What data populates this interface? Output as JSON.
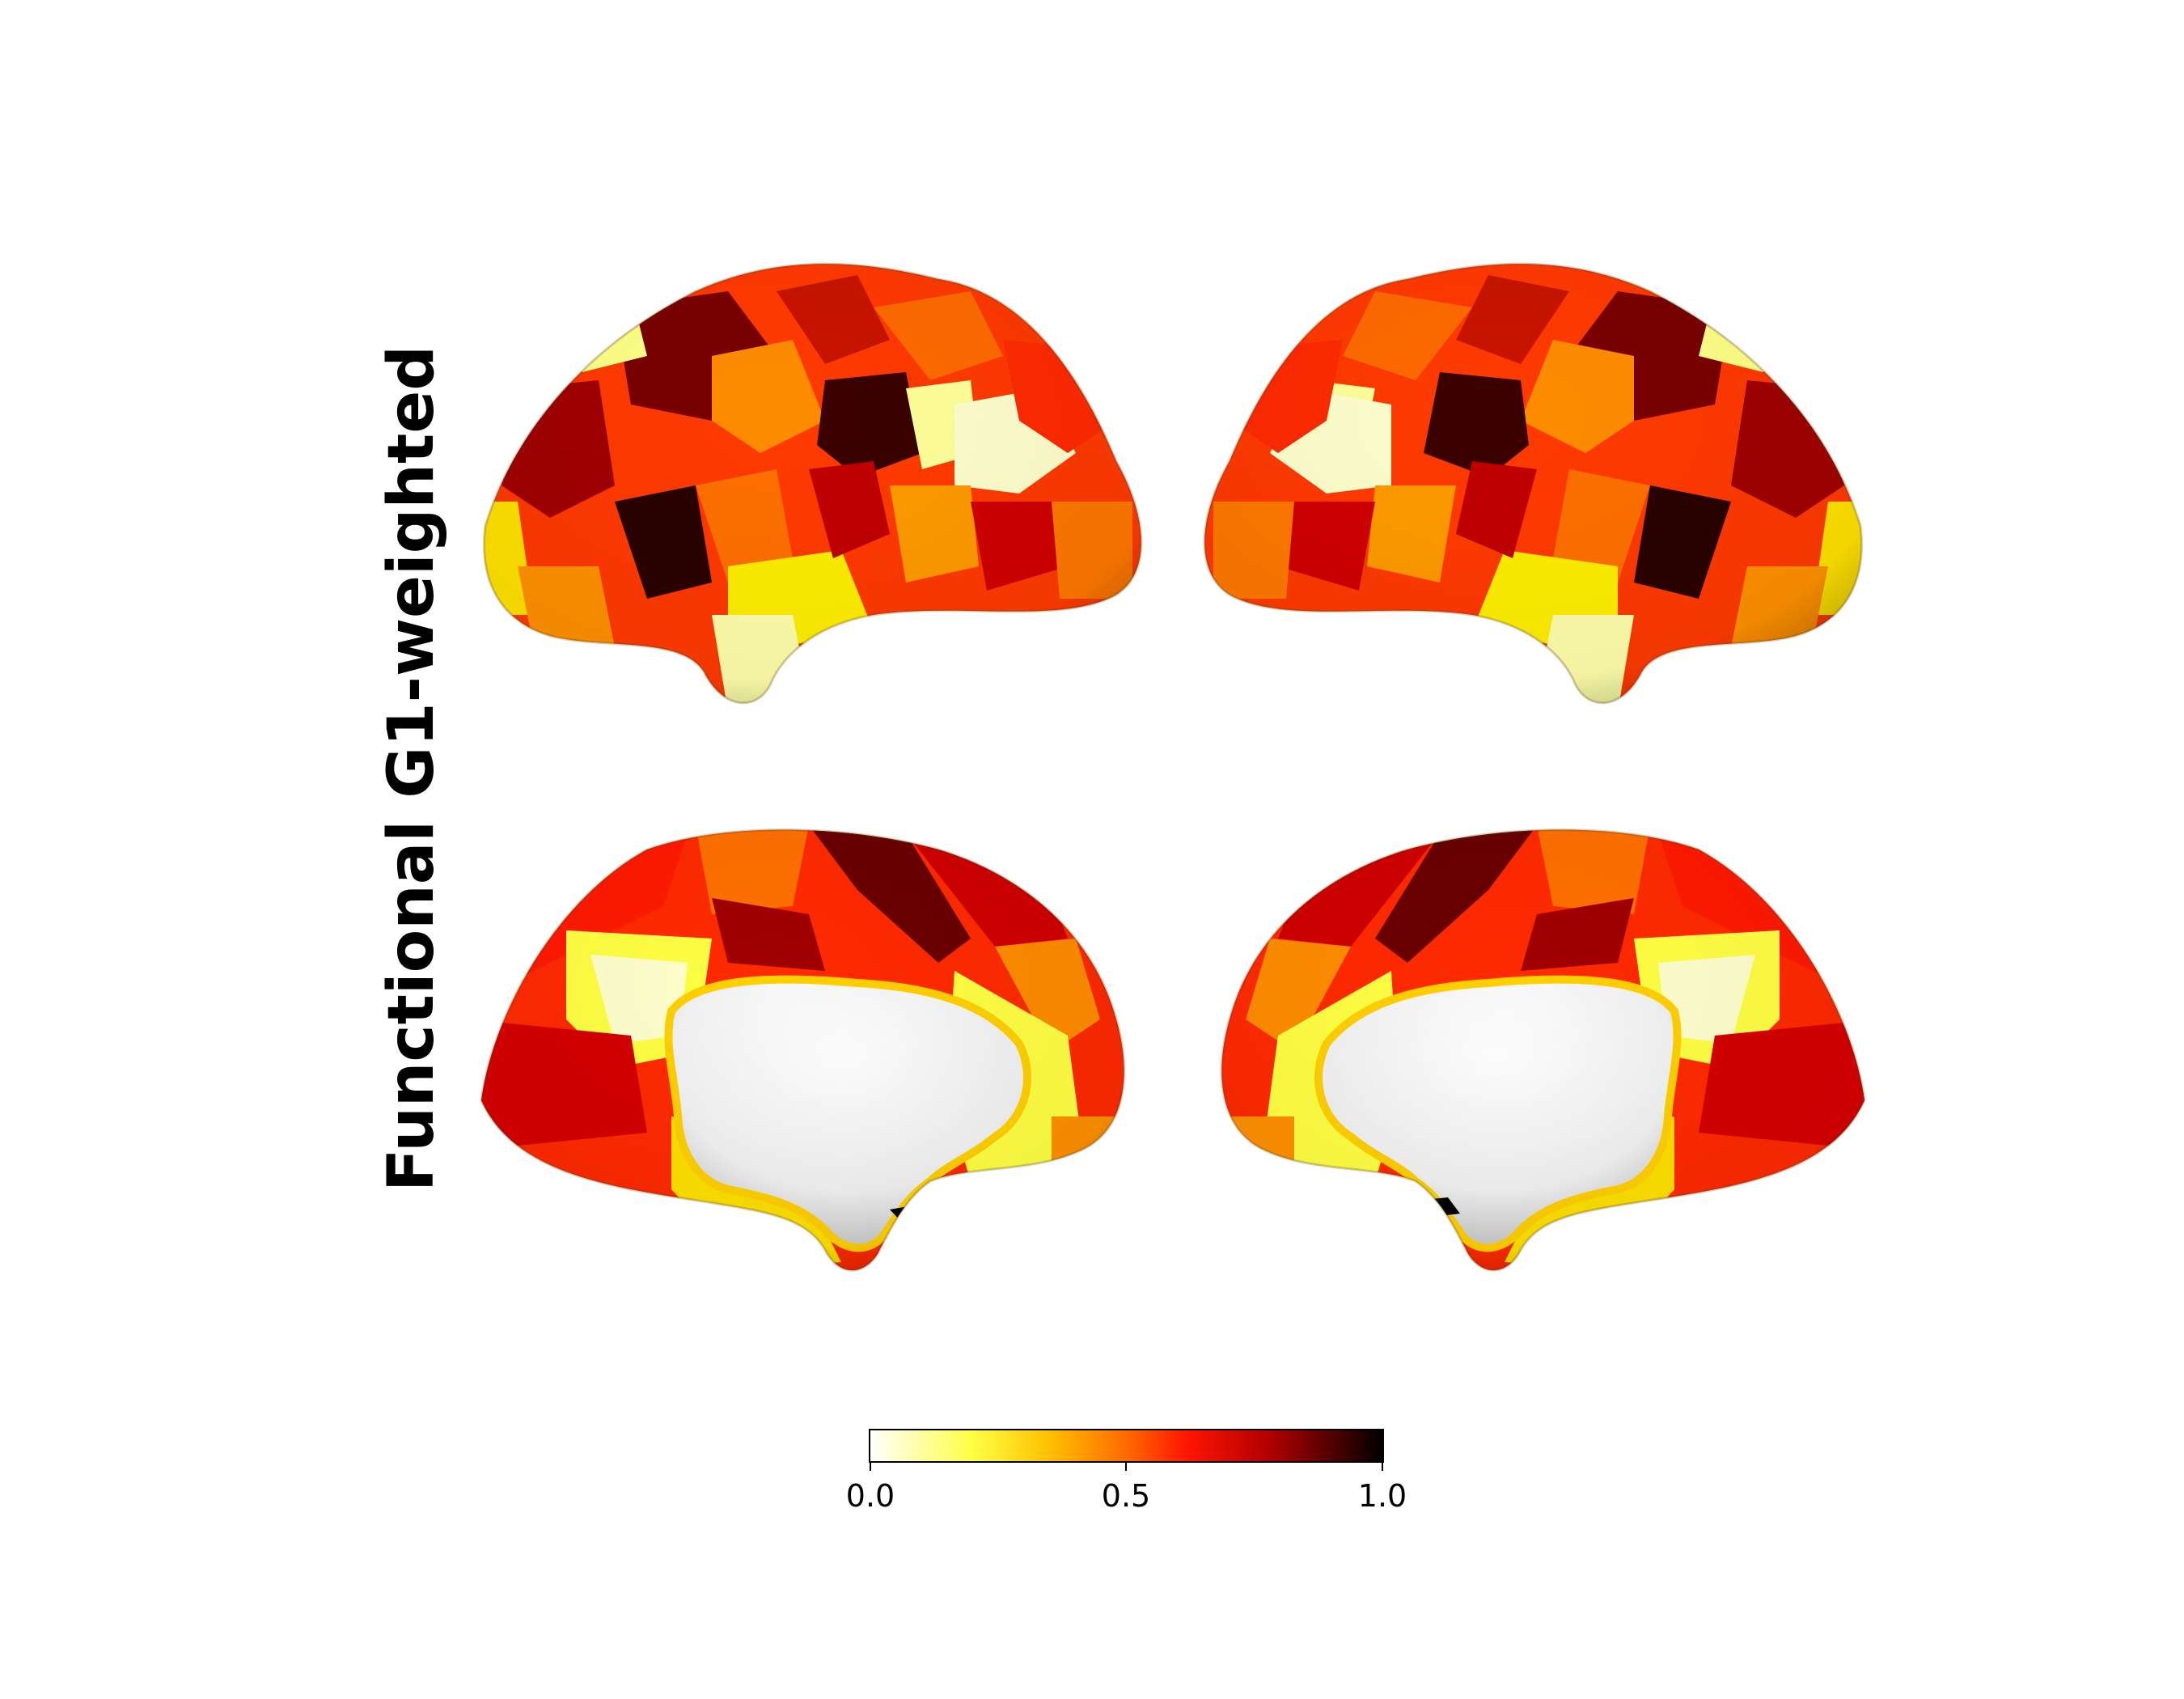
{
  "figure": {
    "row_label": "Functional G1-weighted",
    "views": [
      "left-lateral",
      "right-lateral",
      "left-medial",
      "right-medial"
    ]
  },
  "colormap": {
    "name": "hot_r",
    "stops": [
      "#ffffff",
      "#ffff66",
      "#ffd000",
      "#ff7a00",
      "#ff1a00",
      "#c80000",
      "#7a0000",
      "#000000"
    ]
  },
  "colorbar": {
    "ticks": [
      "0.0",
      "0.5",
      "1.0"
    ],
    "range": [
      0.0,
      1.0
    ]
  }
}
